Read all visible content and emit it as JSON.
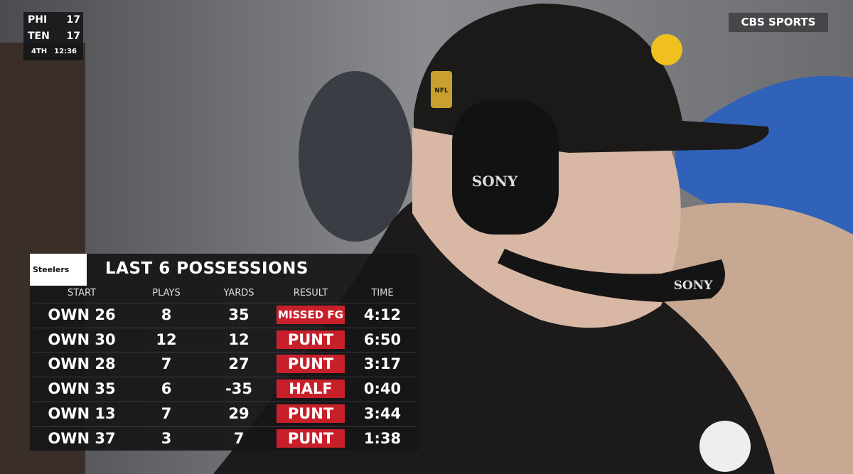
{
  "scorebug": {
    "teams": [
      {
        "abbr": "PHI",
        "score": "17"
      },
      {
        "abbr": "TEN",
        "score": "17"
      }
    ],
    "quarter": "4TH",
    "clock": "12:36"
  },
  "network": "CBS SPORTS",
  "photo_text": {
    "cap_logo": "NFL",
    "headset": "SONY",
    "mic": "SONY"
  },
  "graphic": {
    "logo": "Steelers",
    "title": "LAST 6 POSSESSIONS",
    "columns": [
      "START",
      "PLAYS",
      "YARDS",
      "RESULT",
      "TIME"
    ],
    "rows": [
      [
        "OWN 26",
        "8",
        "35",
        "MISSED FG",
        "4:12"
      ],
      [
        "OWN 30",
        "12",
        "12",
        "PUNT",
        "6:50"
      ],
      [
        "OWN 28",
        "7",
        "27",
        "PUNT",
        "3:17"
      ],
      [
        "OWN 35",
        "6",
        "-35",
        "HALF",
        "0:40"
      ],
      [
        "OWN 13",
        "7",
        "29",
        "PUNT",
        "3:44"
      ],
      [
        "OWN 37",
        "3",
        "7",
        "PUNT",
        "1:38"
      ]
    ]
  }
}
